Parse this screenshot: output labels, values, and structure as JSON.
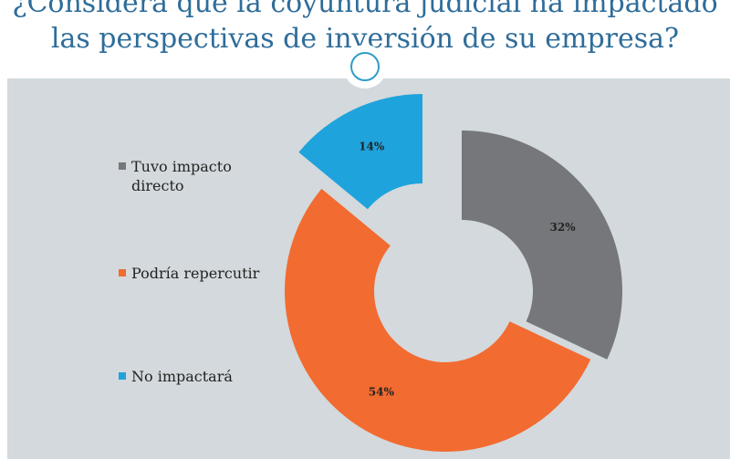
{
  "title": {
    "line1": "¿Considera que la coyuntura judicial ha impactado",
    "line2": "las perspectivas de inversión de su empresa?"
  },
  "chart_data": {
    "type": "pie",
    "style": "exploded donut",
    "title": "¿Considera que la coyuntura judicial ha impactado las perspectivas de inversión de su empresa?",
    "legend_position": "left",
    "slices": [
      {
        "label": "Tuvo impacto directo",
        "value": 32,
        "value_label": "32%",
        "color": "#76777a"
      },
      {
        "label": "Podría repercutir",
        "value": 54,
        "value_label": "54%",
        "color": "#f26b30"
      },
      {
        "label": "No impactará",
        "value": 14,
        "value_label": "14%",
        "color": "#1fa3dc"
      }
    ]
  }
}
